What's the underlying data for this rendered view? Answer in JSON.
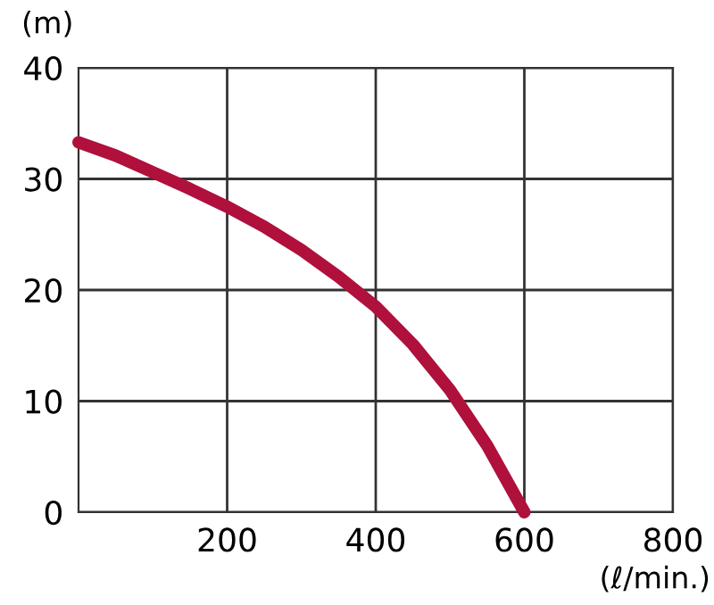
{
  "chart_data": {
    "type": "line",
    "ylabel": "(m)",
    "xlabel": "(ℓ/min.)",
    "x": [
      0,
      50,
      100,
      150,
      200,
      250,
      300,
      350,
      400,
      450,
      500,
      550,
      600
    ],
    "series": [
      {
        "color": "#b0103c",
        "values": [
          33.3,
          32.1,
          30.6,
          29.1,
          27.5,
          25.7,
          23.6,
          21.2,
          18.5,
          15.1,
          11,
          6,
          0
        ]
      }
    ],
    "xlim": [
      0,
      800
    ],
    "xticks": [
      200,
      400,
      600,
      800
    ],
    "ylim": [
      0,
      40
    ],
    "yticks": [
      0,
      10,
      20,
      30,
      40
    ],
    "grid": true,
    "legend": false,
    "marker": "none",
    "line_style": "solid"
  }
}
